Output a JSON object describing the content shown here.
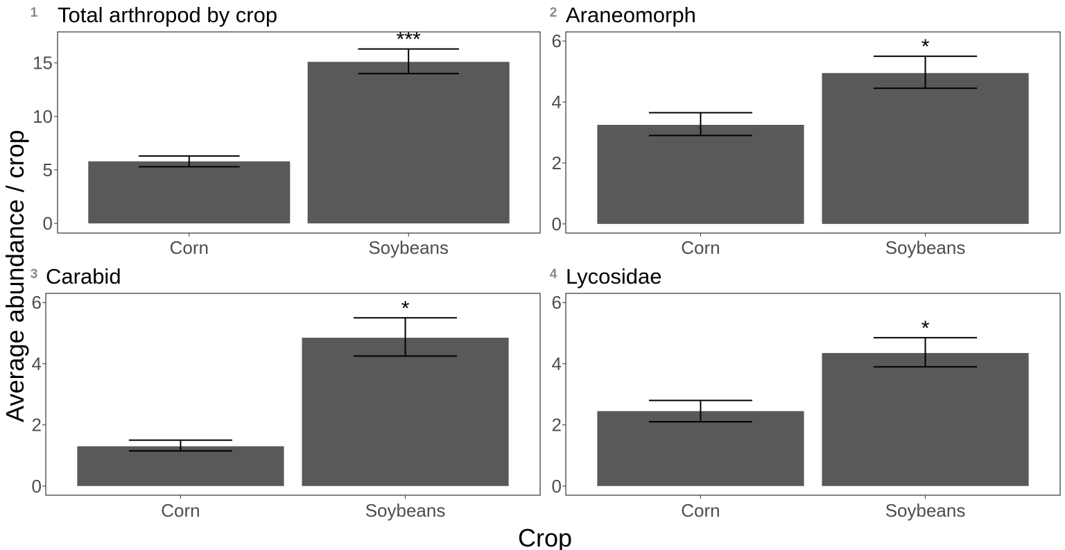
{
  "figure": {
    "xlabel": "Crop",
    "ylabel": "Average abundance / crop"
  },
  "chart_data": [
    {
      "type": "bar",
      "panel_number": "1",
      "title": "Total arthropod by crop",
      "categories": [
        "Corn",
        "Soybeans"
      ],
      "values": [
        5.8,
        15.1
      ],
      "error_low": [
        5.3,
        14.0
      ],
      "error_high": [
        6.3,
        16.3
      ],
      "significance": [
        "",
        "***"
      ],
      "yticks": [
        0,
        5,
        10,
        15
      ],
      "ylim": [
        -0.9,
        17.9
      ]
    },
    {
      "type": "bar",
      "panel_number": "2",
      "title": "Araneomorph",
      "categories": [
        "Corn",
        "Soybeans"
      ],
      "values": [
        3.25,
        4.95
      ],
      "error_low": [
        2.9,
        4.45
      ],
      "error_high": [
        3.65,
        5.5
      ],
      "significance": [
        "",
        "*"
      ],
      "yticks": [
        0,
        2,
        4,
        6
      ],
      "ylim": [
        -0.3,
        6.3
      ]
    },
    {
      "type": "bar",
      "panel_number": "3",
      "title": "Carabid",
      "categories": [
        "Corn",
        "Soybeans"
      ],
      "values": [
        1.3,
        4.85
      ],
      "error_low": [
        1.15,
        4.25
      ],
      "error_high": [
        1.5,
        5.5
      ],
      "significance": [
        "",
        "*"
      ],
      "yticks": [
        0,
        2,
        4,
        6
      ],
      "ylim": [
        -0.3,
        6.3
      ]
    },
    {
      "type": "bar",
      "panel_number": "4",
      "title": "Lycosidae",
      "categories": [
        "Corn",
        "Soybeans"
      ],
      "values": [
        2.45,
        4.35
      ],
      "error_low": [
        2.1,
        3.9
      ],
      "error_high": [
        2.8,
        4.85
      ],
      "significance": [
        "",
        "*"
      ],
      "yticks": [
        0,
        2,
        4,
        6
      ],
      "ylim": [
        -0.3,
        6.3
      ]
    }
  ]
}
